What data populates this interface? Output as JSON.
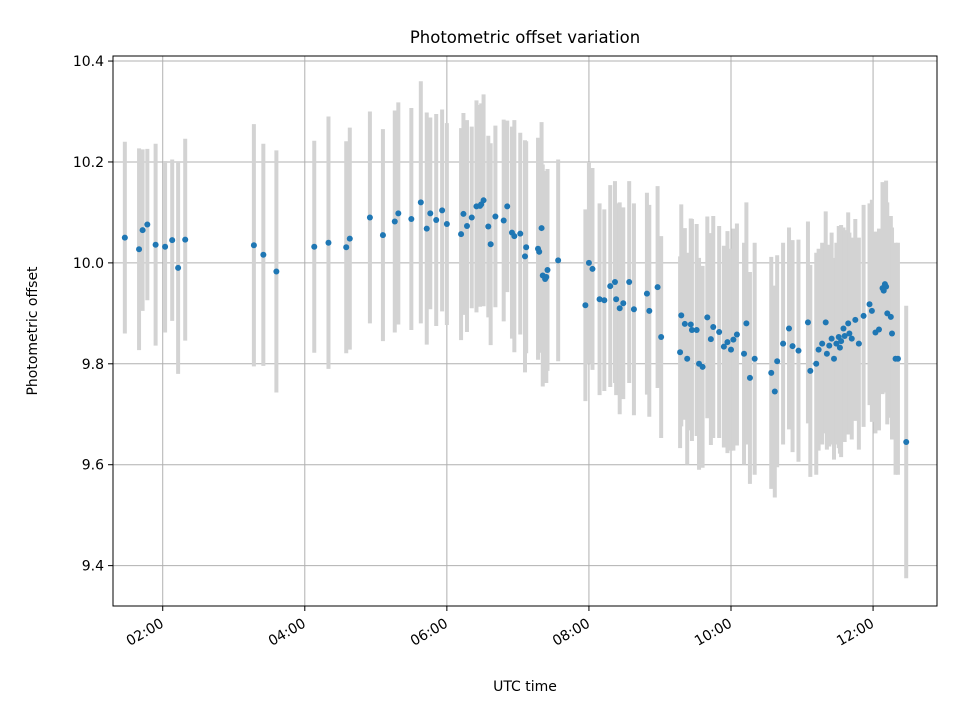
{
  "chart_data": {
    "type": "scatter",
    "title": "Photometric offset variation",
    "xlabel": "UTC time",
    "ylabel": "Photometric offset",
    "grid": true,
    "xlim": [
      "01:18",
      "12:54"
    ],
    "ylim": [
      9.32,
      10.41
    ],
    "x_ticks": [
      "02:00",
      "04:00",
      "06:00",
      "08:00",
      "10:00",
      "12:00"
    ],
    "y_ticks": [
      "9.4",
      "9.6",
      "9.8",
      "10.0",
      "10.2",
      "10.4"
    ],
    "colors": {
      "point": "#1f77b4",
      "errorbar": "#d3d3d3",
      "grid": "#b0b0b0"
    },
    "series": [
      {
        "x": [
          "01:28",
          "01:40",
          "01:43",
          "01:47",
          "01:54",
          "02:02",
          "02:08",
          "02:13",
          "02:19",
          "03:17",
          "03:25",
          "03:36",
          "04:08",
          "04:20",
          "04:35",
          "04:38",
          "04:55",
          "05:06",
          "05:16",
          "05:19",
          "05:30",
          "05:38",
          "05:43",
          "05:46",
          "05:51",
          "05:56",
          "06:00",
          "06:12",
          "06:14",
          "06:17",
          "06:21",
          "06:25",
          "06:28",
          "06:29",
          "06:31",
          "06:35",
          "06:37",
          "06:41",
          "06:48",
          "06:51",
          "06:55",
          "06:57",
          "07:02",
          "07:06",
          "07:07",
          "07:17",
          "07:18",
          "07:20",
          "07:21",
          "07:23",
          "07:24",
          "07:25",
          "07:34",
          "07:57",
          "08:00",
          "08:03",
          "08:09",
          "08:13",
          "08:18",
          "08:22",
          "08:23",
          "08:26",
          "08:29",
          "08:34",
          "08:38",
          "08:49",
          "08:51",
          "08:58",
          "09:01",
          "09:17",
          "09:18",
          "09:21",
          "09:23",
          "09:26",
          "09:27",
          "09:31",
          "09:33",
          "09:36",
          "09:40",
          "09:43",
          "09:45",
          "09:50",
          "09:54",
          "09:57",
          "10:00",
          "10:02",
          "10:05",
          "10:11",
          "10:13",
          "10:16",
          "10:20",
          "10:34",
          "10:37",
          "10:39",
          "10:44",
          "10:49",
          "10:52",
          "10:57",
          "11:05",
          "11:07",
          "11:12",
          "11:14",
          "11:17",
          "11:20",
          "11:21",
          "11:23",
          "11:25",
          "11:27",
          "11:29",
          "11:31",
          "11:32",
          "11:33",
          "11:35",
          "11:36",
          "11:39",
          "11:40",
          "11:42",
          "11:45",
          "11:48",
          "11:52",
          "11:57",
          "11:59",
          "12:02",
          "12:05",
          "12:08",
          "12:09",
          "12:10",
          "12:11",
          "12:12",
          "12:15",
          "12:16",
          "12:19",
          "12:21",
          "12:28"
        ],
        "y": [
          10.05,
          10.027,
          10.065,
          10.076,
          10.036,
          10.032,
          10.045,
          9.99,
          10.046,
          10.035,
          10.016,
          9.983,
          10.032,
          10.04,
          10.031,
          10.048,
          10.09,
          10.055,
          10.082,
          10.098,
          10.087,
          10.12,
          10.068,
          10.098,
          10.085,
          10.104,
          10.077,
          10.057,
          10.097,
          10.073,
          10.09,
          10.112,
          10.113,
          10.116,
          10.124,
          10.072,
          10.037,
          10.092,
          10.084,
          10.112,
          10.06,
          10.053,
          10.058,
          10.013,
          10.031,
          10.028,
          10.022,
          10.069,
          9.975,
          9.968,
          9.972,
          9.986,
          10.005,
          9.916,
          10.0,
          9.988,
          9.928,
          9.926,
          9.954,
          9.962,
          9.928,
          9.91,
          9.92,
          9.962,
          9.908,
          9.939,
          9.905,
          9.952,
          9.853,
          9.823,
          9.896,
          9.879,
          9.81,
          9.878,
          9.867,
          9.867,
          9.8,
          9.794,
          9.892,
          9.849,
          9.873,
          9.863,
          9.834,
          9.843,
          9.828,
          9.848,
          9.858,
          9.82,
          9.88,
          9.772,
          9.81,
          9.782,
          9.745,
          9.805,
          9.84,
          9.87,
          9.835,
          9.826,
          9.882,
          9.786,
          9.8,
          9.828,
          9.84,
          9.882,
          9.82,
          9.836,
          9.85,
          9.81,
          9.84,
          9.853,
          9.832,
          9.845,
          9.87,
          9.855,
          9.88,
          9.86,
          9.85,
          9.887,
          9.84,
          9.895,
          9.918,
          9.905,
          9.862,
          9.868,
          9.95,
          9.945,
          9.958,
          9.953,
          9.9,
          9.893,
          9.86,
          9.81,
          9.81,
          9.645
        ],
        "err": [
          0.19,
          0.2,
          0.16,
          0.15,
          0.2,
          0.17,
          0.16,
          0.21,
          0.2,
          0.24,
          0.22,
          0.24,
          0.21,
          0.25,
          0.21,
          0.22,
          0.21,
          0.21,
          0.22,
          0.22,
          0.22,
          0.24,
          0.23,
          0.19,
          0.21,
          0.2,
          0.2,
          0.21,
          0.2,
          0.21,
          0.18,
          0.21,
          0.2,
          0.2,
          0.21,
          0.18,
          0.2,
          0.18,
          0.2,
          0.17,
          0.21,
          0.23,
          0.2,
          0.23,
          0.21,
          0.22,
          0.2,
          0.21,
          0.22,
          0.2,
          0.21,
          0.2,
          0.2,
          0.19,
          0.2,
          0.2,
          0.19,
          0.18,
          0.2,
          0.2,
          0.19,
          0.21,
          0.19,
          0.2,
          0.21,
          0.2,
          0.21,
          0.2,
          0.2,
          0.19,
          0.22,
          0.19,
          0.21,
          0.21,
          0.22,
          0.21,
          0.21,
          0.2,
          0.2,
          0.21,
          0.22,
          0.21,
          0.2,
          0.22,
          0.2,
          0.22,
          0.22,
          0.22,
          0.24,
          0.21,
          0.23,
          0.23,
          0.21,
          0.21,
          0.2,
          0.2,
          0.21,
          0.22,
          0.2,
          0.21,
          0.22,
          0.2,
          0.2,
          0.22,
          0.19,
          0.2,
          0.21,
          0.2,
          0.2,
          0.22,
          0.21,
          0.23,
          0.2,
          0.21,
          0.22,
          0.2,
          0.2,
          0.2,
          0.21,
          0.22,
          0.2,
          0.22,
          0.2,
          0.2,
          0.21,
          0.2,
          0.2,
          0.21,
          0.22,
          0.2,
          0.21,
          0.23,
          0.23,
          0.27
        ]
      }
    ]
  }
}
